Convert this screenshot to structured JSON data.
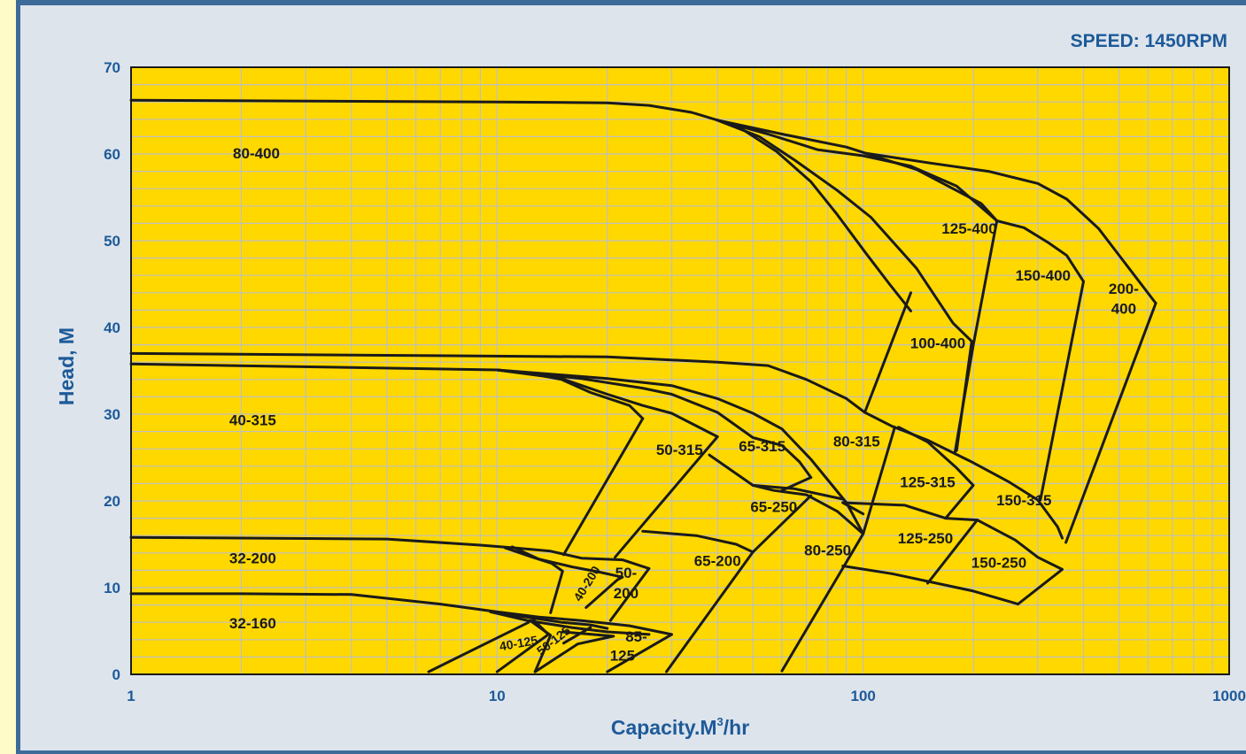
{
  "chart_data": {
    "type": "line",
    "title": "SPEED: 1450RPM",
    "xlabel": "Capacity.M³/hr",
    "xlabel_main": "Capacity.M",
    "xlabel_sup": "3",
    "xlabel_tail": "/hr",
    "ylabel": "Head, M",
    "x_scale": "log",
    "xlim": [
      1,
      1000
    ],
    "ylim": [
      0,
      70
    ],
    "x_ticks": [
      "1",
      "10",
      "100",
      "1000"
    ],
    "y_ticks": [
      "0",
      "10",
      "20",
      "30",
      "40",
      "50",
      "60",
      "70"
    ],
    "grid": true,
    "colors": {
      "plot_bg": "#ffd800",
      "grid": "#bfbfbf",
      "curve": "#1a1a1a",
      "text": "#1d5a99"
    },
    "series": [
      {
        "values": [
          [
            1,
            66.2
          ],
          [
            10,
            66
          ],
          [
            20,
            65.9
          ],
          [
            26,
            65.6
          ],
          [
            34,
            64.8
          ],
          [
            40,
            63.9
          ],
          [
            47,
            62.8
          ],
          [
            58,
            60.3
          ],
          [
            72,
            56.8
          ],
          [
            85,
            53
          ],
          [
            102,
            48.5
          ],
          [
            118,
            45
          ],
          [
            135,
            41.9
          ]
        ]
      },
      {
        "values": [
          [
            40,
            63.9
          ],
          [
            52,
            62
          ],
          [
            65,
            59.3
          ],
          [
            85,
            55.8
          ],
          [
            105,
            52.7
          ],
          [
            140,
            46.8
          ],
          [
            176,
            40.5
          ],
          [
            198,
            38.4
          ]
        ]
      },
      {
        "values": [
          [
            40,
            63.9
          ],
          [
            55,
            62.3
          ],
          [
            75,
            60.5
          ],
          [
            100,
            59.8
          ],
          [
            135,
            58.6
          ],
          [
            180,
            56.3
          ],
          [
            232,
            52.3
          ]
        ]
      },
      {
        "values": [
          [
            40,
            63.9
          ],
          [
            60,
            62.3
          ],
          [
            90,
            60.8
          ],
          [
            140,
            58.2
          ],
          [
            210,
            54.3
          ],
          [
            232,
            52.3
          ]
        ]
      },
      {
        "values": [
          [
            101,
            60.1
          ],
          [
            150,
            59
          ],
          [
            220,
            58
          ],
          [
            300,
            56.6
          ],
          [
            360,
            54.8
          ],
          [
            440,
            51.4
          ],
          [
            630,
            42.8
          ]
        ]
      },
      {
        "values": [
          [
            232,
            52.3
          ],
          [
            275,
            51.5
          ],
          [
            320,
            49.8
          ],
          [
            360,
            48.3
          ],
          [
            400,
            45.3
          ]
        ]
      },
      {
        "values": [
          [
            135,
            44
          ],
          [
            101,
            30.2
          ]
        ]
      },
      {
        "values": [
          [
            198,
            38.4
          ],
          [
            180,
            25.8
          ]
        ]
      },
      {
        "values": [
          [
            232,
            52.3
          ],
          [
            200,
            38
          ],
          [
            178,
            25.5
          ]
        ]
      },
      {
        "values": [
          [
            400,
            45.3
          ],
          [
            305,
            20.1
          ]
        ]
      },
      {
        "values": [
          [
            630,
            42.8
          ],
          [
            358,
            15.2
          ]
        ]
      },
      {
        "values": [
          [
            1,
            37
          ],
          [
            20,
            36.6
          ],
          [
            40,
            36
          ],
          [
            55,
            35.6
          ],
          [
            70,
            34
          ],
          [
            90,
            31.8
          ],
          [
            101,
            30.2
          ],
          [
            120,
            28.6
          ],
          [
            150,
            27
          ],
          [
            200,
            24.4
          ],
          [
            250,
            22.2
          ],
          [
            300,
            20.1
          ],
          [
            340,
            17
          ],
          [
            350,
            15.7
          ]
        ]
      },
      {
        "values": [
          [
            1,
            35.8
          ],
          [
            10,
            35.1
          ],
          [
            13,
            34.5
          ],
          [
            15,
            34
          ],
          [
            18,
            32.5
          ],
          [
            23,
            31
          ],
          [
            25,
            29.5
          ]
        ]
      },
      {
        "values": [
          [
            10,
            35.1
          ],
          [
            15,
            34.1
          ],
          [
            20,
            32.3
          ],
          [
            25,
            31
          ],
          [
            30,
            30.1
          ],
          [
            40,
            27.4
          ]
        ]
      },
      {
        "values": [
          [
            10,
            35.1
          ],
          [
            17,
            34.1
          ],
          [
            25,
            33
          ],
          [
            30,
            32.3
          ],
          [
            40,
            30.2
          ],
          [
            50,
            27.3
          ],
          [
            60,
            26.4
          ],
          [
            67,
            24.5
          ],
          [
            72,
            22.7
          ]
        ]
      },
      {
        "values": [
          [
            10,
            35.1
          ],
          [
            20,
            34.1
          ],
          [
            30,
            33.3
          ],
          [
            40,
            31.8
          ],
          [
            50,
            30.1
          ],
          [
            60,
            28.3
          ],
          [
            72,
            24.8
          ],
          [
            90,
            19.8
          ],
          [
            100,
            16.2
          ]
        ]
      },
      {
        "values": [
          [
            25,
            29.5
          ],
          [
            15.2,
            13.8
          ]
        ]
      },
      {
        "values": [
          [
            40,
            27.4
          ],
          [
            21,
            13.5
          ]
        ]
      },
      {
        "values": [
          [
            38,
            25.3
          ],
          [
            50,
            21.8
          ],
          [
            57,
            21.2
          ],
          [
            70,
            20.7
          ],
          [
            85,
            18.8
          ],
          [
            100,
            16.2
          ]
        ]
      },
      {
        "values": [
          [
            50,
            21.8
          ],
          [
            65,
            21.4
          ],
          [
            88,
            20.2
          ]
        ]
      },
      {
        "values": [
          [
            72,
            22.7
          ],
          [
            60,
            21.2
          ]
        ]
      },
      {
        "values": [
          [
            125,
            28.5
          ],
          [
            150,
            26.8
          ],
          [
            180,
            23.8
          ],
          [
            200,
            21.8
          ],
          [
            168,
            18
          ]
        ]
      },
      {
        "values": [
          [
            88,
            19.8
          ],
          [
            130,
            19.5
          ],
          [
            168,
            18
          ],
          [
            205,
            17.8
          ]
        ]
      },
      {
        "values": [
          [
            122,
            28.5
          ],
          [
            100,
            16.2
          ],
          [
            60,
            0.4
          ]
        ]
      },
      {
        "values": [
          [
            88,
            19.8
          ],
          [
            100,
            18.5
          ]
        ]
      },
      {
        "values": [
          [
            205,
            17.8
          ],
          [
            150,
            10.5
          ]
        ]
      },
      {
        "values": [
          [
            205,
            17.8
          ],
          [
            260,
            15.5
          ],
          [
            300,
            13.5
          ],
          [
            350,
            12.1
          ],
          [
            265,
            8.1
          ]
        ]
      },
      {
        "values": [
          [
            88,
            12.5
          ],
          [
            120,
            11.6
          ],
          [
            155,
            10.6
          ],
          [
            200,
            9.6
          ],
          [
            265,
            8.1
          ]
        ]
      },
      {
        "values": [
          [
            72,
            20.6
          ],
          [
            50,
            14.1
          ],
          [
            29,
            0.3
          ]
        ]
      },
      {
        "values": [
          [
            25,
            16.5
          ],
          [
            35,
            16
          ],
          [
            45,
            15
          ],
          [
            50,
            14.1
          ]
        ]
      },
      {
        "values": [
          [
            1,
            15.8
          ],
          [
            5,
            15.6
          ],
          [
            9,
            14.9
          ],
          [
            11,
            14.6
          ],
          [
            14,
            14.2
          ],
          [
            17,
            13.4
          ],
          [
            22,
            13.2
          ],
          [
            26,
            12.2
          ]
        ]
      },
      {
        "values": [
          [
            10.5,
            14.6
          ],
          [
            12.3,
            13.6
          ],
          [
            14.1,
            12.8
          ],
          [
            15.1,
            11.9
          ],
          [
            14,
            7.1
          ]
        ]
      },
      {
        "values": [
          [
            11,
            14.7
          ],
          [
            13,
            13.3
          ],
          [
            16,
            12.4
          ],
          [
            19,
            11.8
          ],
          [
            22,
            11.2
          ],
          [
            21.3,
            10.9
          ],
          [
            17.5,
            7.7
          ]
        ]
      },
      {
        "values": [
          [
            26,
            12.2
          ],
          [
            20.4,
            6.2
          ]
        ]
      },
      {
        "values": [
          [
            1,
            9.3
          ],
          [
            2,
            9.3
          ],
          [
            4,
            9.2
          ],
          [
            7,
            8.1
          ],
          [
            10,
            7.2
          ],
          [
            13,
            6.6
          ],
          [
            17,
            6.2
          ],
          [
            23,
            5.6
          ],
          [
            30,
            4.6
          ]
        ]
      },
      {
        "values": [
          [
            9.6,
            7.2
          ],
          [
            12,
            6.6
          ],
          [
            15,
            6
          ],
          [
            18,
            5.7
          ],
          [
            20,
            5.3
          ]
        ]
      },
      {
        "values": [
          [
            9.6,
            7.2
          ],
          [
            12.1,
            6.2
          ],
          [
            16,
            5.4
          ],
          [
            20,
            4.9
          ],
          [
            26,
            4.6
          ]
        ]
      },
      {
        "values": [
          [
            12.2,
            6
          ],
          [
            6.5,
            0.3
          ]
        ]
      },
      {
        "values": [
          [
            12.5,
            6.4
          ],
          [
            13.8,
            4.6
          ],
          [
            10,
            0.3
          ]
        ]
      },
      {
        "values": [
          [
            15.1,
            4.9
          ],
          [
            20.8,
            4.4
          ],
          [
            16.6,
            3.5
          ],
          [
            12.7,
            0.3
          ]
        ]
      },
      {
        "values": [
          [
            30,
            4.6
          ],
          [
            20,
            0.3
          ]
        ]
      },
      {
        "values": [
          [
            12.3,
            6.2
          ],
          [
            14,
            4.5
          ],
          [
            12.7,
            0.3
          ]
        ]
      },
      {
        "values": [
          [
            18,
            5.4
          ],
          [
            15.2,
            3.6
          ]
        ]
      }
    ],
    "zones": [
      {
        "label": "80-400",
        "x": 2.2,
        "y": 59.5
      },
      {
        "label": "125-400",
        "x": 195,
        "y": 50.8
      },
      {
        "label": "150-400",
        "x": 310,
        "y": 45.4
      },
      {
        "label": "200-",
        "x": 515,
        "y": 43.9
      },
      {
        "label": "400",
        "x": 515,
        "y": 41.6
      },
      {
        "label": "100-400",
        "x": 160,
        "y": 37.6
      },
      {
        "label": "40-315",
        "x": 2.15,
        "y": 28.7
      },
      {
        "label": "50-315",
        "x": 31.5,
        "y": 25.3
      },
      {
        "label": "65-315",
        "x": 53,
        "y": 25.7
      },
      {
        "label": "80-315",
        "x": 96,
        "y": 26.3
      },
      {
        "label": "125-315",
        "x": 150,
        "y": 21.6
      },
      {
        "label": "150-315",
        "x": 275,
        "y": 19.5
      },
      {
        "label": "65-250",
        "x": 57,
        "y": 18.7
      },
      {
        "label": "125-250",
        "x": 148,
        "y": 15.1
      },
      {
        "label": "80-250",
        "x": 80,
        "y": 13.7
      },
      {
        "label": "150-250",
        "x": 235,
        "y": 12.3
      },
      {
        "label": "65-200",
        "x": 40,
        "y": 12.5
      },
      {
        "label": "32-200",
        "x": 2.15,
        "y": 12.8
      },
      {
        "label": "50-",
        "x": 22.5,
        "y": 11.1
      },
      {
        "label": "200",
        "x": 22.5,
        "y": 8.8
      },
      {
        "label": "32-160",
        "x": 2.15,
        "y": 5.3
      },
      {
        "label": "85-",
        "x": 24,
        "y": 3.8
      },
      {
        "label": "125",
        "x": 22,
        "y": 1.6
      }
    ],
    "rotated_zones": [
      {
        "label": "40-200",
        "x": 18,
        "y": 10.2,
        "angle": -58
      },
      {
        "label": "40-125",
        "x": 11.5,
        "y": 3.1,
        "angle": -10
      },
      {
        "label": "50-125",
        "x": 14.5,
        "y": 3.5,
        "angle": -38
      }
    ]
  }
}
